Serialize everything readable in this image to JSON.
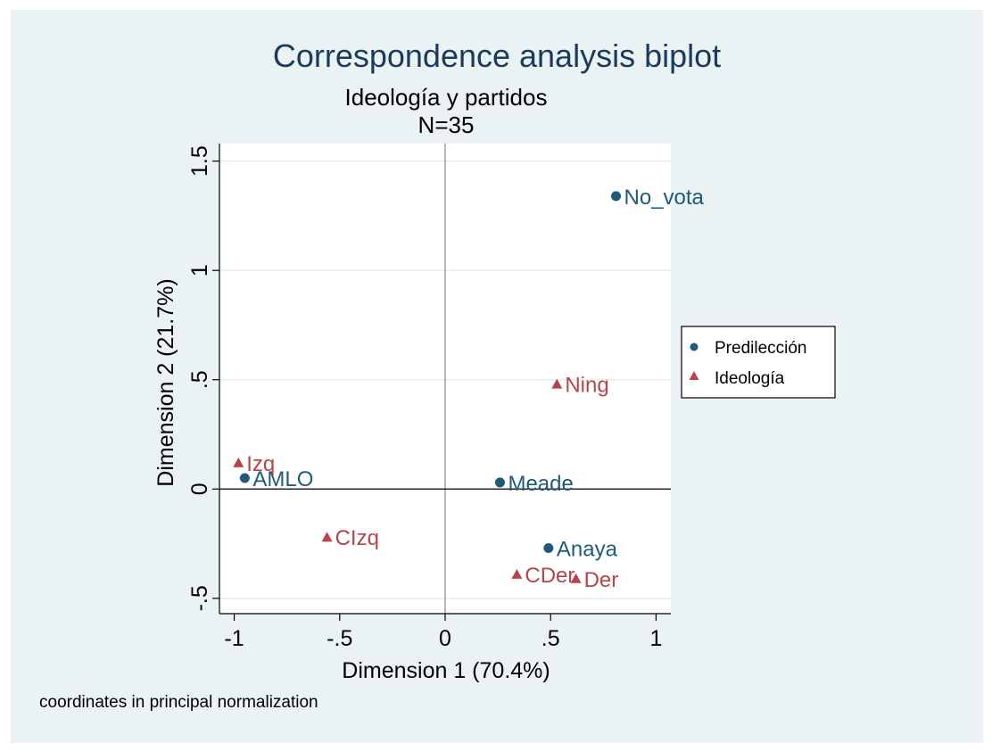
{
  "chart_data": {
    "type": "scatter",
    "title": "Correspondence analysis biplot",
    "subtitle": "Ideología y partidos",
    "subtitle2": "N=35",
    "xlabel": "Dimension 1 (70.4%)",
    "ylabel": "Dimension 2 (21.7%)",
    "note": "coordinates in principal normalization",
    "xlim": [
      -1.07,
      1.07
    ],
    "ylim": [
      -0.57,
      1.58
    ],
    "xticks": [
      -1,
      -0.5,
      0,
      0.5,
      1
    ],
    "xtick_labels": [
      "-1",
      "-.5",
      "0",
      ".5",
      "1"
    ],
    "yticks": [
      -0.5,
      0,
      0.5,
      1,
      1.5
    ],
    "ytick_labels": [
      "-.5",
      "0",
      ".5",
      "1",
      "1.5"
    ],
    "grid": true,
    "legend_position": "right",
    "series": [
      {
        "name": "Predilección",
        "marker": "circle",
        "color": "#1f5a7a",
        "points": [
          {
            "label": "No_vota",
            "x": 0.81,
            "y": 1.34
          },
          {
            "label": "AMLO",
            "x": -0.95,
            "y": 0.05
          },
          {
            "label": "Meade",
            "x": 0.26,
            "y": 0.03
          },
          {
            "label": "Anaya",
            "x": 0.49,
            "y": -0.27
          }
        ]
      },
      {
        "name": "Ideología",
        "marker": "triangle",
        "color": "#b5454a",
        "points": [
          {
            "label": "Ning",
            "x": 0.53,
            "y": 0.48
          },
          {
            "label": "Izq",
            "x": -0.98,
            "y": 0.12
          },
          {
            "label": "CIzq",
            "x": -0.56,
            "y": -0.22
          },
          {
            "label": "CDer",
            "x": 0.34,
            "y": -0.39
          },
          {
            "label": "Der",
            "x": 0.62,
            "y": -0.41
          }
        ]
      }
    ]
  }
}
